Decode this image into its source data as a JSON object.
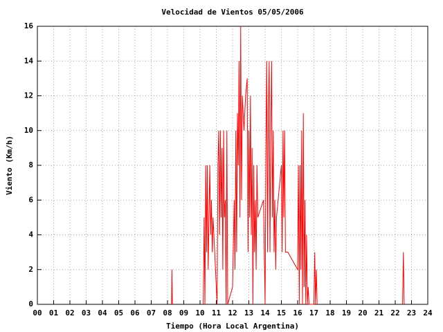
{
  "chart_data": {
    "type": "line",
    "title": "Velocidad de Vientos 05/05/2006",
    "x_label": "Tiempo (Hora Local Argentina)",
    "y_label": "Viento (Km/h)",
    "xlim": [
      0,
      24
    ],
    "ylim": [
      0,
      16
    ],
    "xticks": [
      {
        "value": 0,
        "label": "00"
      },
      {
        "value": 1,
        "label": "01"
      },
      {
        "value": 2,
        "label": "02"
      },
      {
        "value": 3,
        "label": "03"
      },
      {
        "value": 4,
        "label": "04"
      },
      {
        "value": 5,
        "label": "05"
      },
      {
        "value": 6,
        "label": "06"
      },
      {
        "value": 7,
        "label": "07"
      },
      {
        "value": 8,
        "label": "08"
      },
      {
        "value": 9,
        "label": "09"
      },
      10,
      11,
      12,
      13,
      14,
      15,
      16,
      17,
      18,
      19,
      20,
      21,
      22,
      23,
      24
    ],
    "yticks": [
      0,
      2,
      4,
      6,
      8,
      10,
      12,
      14,
      16
    ],
    "grid": true,
    "color": "#ff0000",
    "x": [
      8.25,
      8.27,
      8.3,
      null,
      10.2,
      10.25,
      10.3,
      10.35,
      10.4,
      10.45,
      10.5,
      10.6,
      10.65,
      10.7,
      10.75,
      10.8,
      11.05,
      11.1,
      11.15,
      11.2,
      11.25,
      11.3,
      11.35,
      11.4,
      11.45,
      11.5,
      11.55,
      11.6,
      11.65,
      11.7,
      12.0,
      12.1,
      12.15,
      12.2,
      12.25,
      12.3,
      12.35,
      12.4,
      12.45,
      12.5,
      12.55,
      12.6,
      12.7,
      12.8,
      12.9,
      12.95,
      13.0,
      13.05,
      13.1,
      13.15,
      13.2,
      13.25,
      13.3,
      13.35,
      13.4,
      13.45,
      13.5,
      13.55,
      13.9,
      14.0,
      14.05,
      14.1,
      14.15,
      14.2,
      14.25,
      14.3,
      14.35,
      14.4,
      14.45,
      14.5,
      14.55,
      14.6,
      14.65,
      14.7,
      15.0,
      15.05,
      15.1,
      15.15,
      15.2,
      15.25,
      15.3,
      15.4,
      16.0,
      16.05,
      16.1,
      16.15,
      16.2,
      16.25,
      16.3,
      16.35,
      16.4,
      16.45,
      16.5,
      16.55,
      16.6,
      16.65,
      16.7,
      17.0,
      17.05,
      17.1,
      17.15,
      17.2,
      null,
      22.45,
      22.5,
      22.55
    ],
    "values": [
      0,
      2,
      0,
      null,
      0,
      5,
      0,
      8,
      3,
      8,
      2,
      8,
      4,
      6,
      3,
      5,
      0,
      8,
      10,
      4,
      10,
      5,
      9,
      2,
      10,
      5,
      6,
      0,
      10,
      0,
      1,
      6,
      2,
      10,
      3,
      11,
      8,
      14,
      5,
      16,
      6,
      12,
      10,
      12,
      13,
      3,
      10,
      5,
      12,
      4,
      9,
      0,
      8,
      3,
      6,
      2,
      8,
      5,
      6,
      0,
      9,
      14,
      3,
      11,
      14,
      3,
      10,
      14,
      5,
      10,
      3,
      6,
      2,
      5,
      8,
      3,
      10,
      5,
      10,
      3,
      3,
      3,
      2,
      8,
      0,
      8,
      2,
      10,
      0,
      11,
      1,
      6,
      0,
      4,
      0,
      1,
      0,
      0,
      3,
      0,
      2,
      0,
      null,
      0,
      3,
      0
    ]
  }
}
